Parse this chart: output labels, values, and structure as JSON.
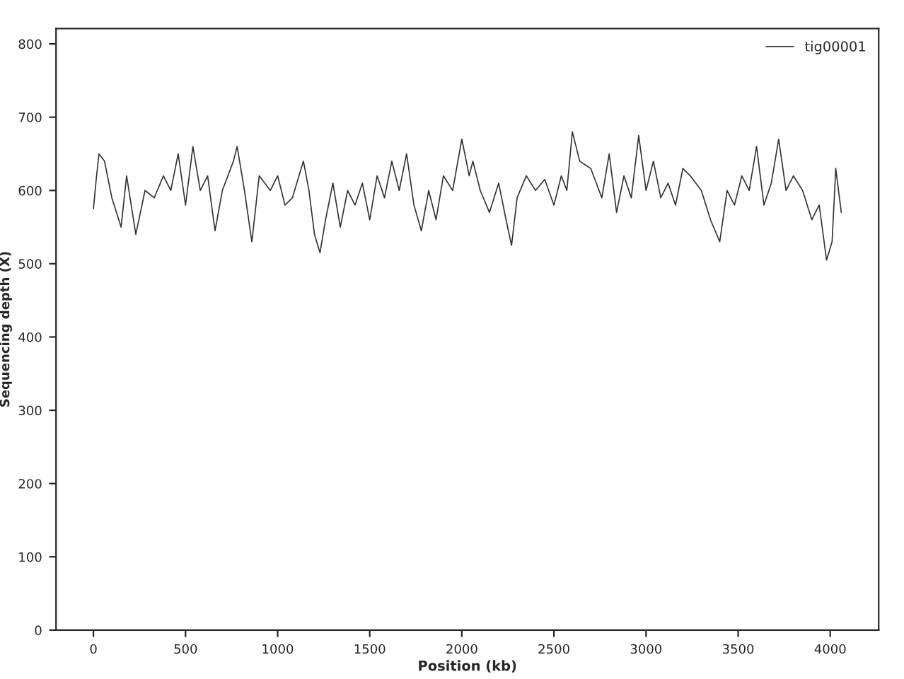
{
  "chart_data": {
    "type": "line",
    "xlabel": "Position (kb)",
    "ylabel": "Sequencing depth (X)",
    "xlim": [
      -203,
      4263
    ],
    "ylim": [
      0,
      821
    ],
    "xticks": [
      0,
      500,
      1000,
      1500,
      2000,
      2500,
      3000,
      3500,
      4000
    ],
    "yticks": [
      0,
      100,
      200,
      300,
      400,
      500,
      600,
      700,
      800
    ],
    "grid": false,
    "legend": "top right",
    "line_style": "solid",
    "marker": "none",
    "series": [
      {
        "name": "tig00001",
        "color": "#333333",
        "x": [
          0,
          15,
          30,
          60,
          100,
          150,
          180,
          230,
          280,
          330,
          380,
          420,
          460,
          500,
          540,
          580,
          620,
          660,
          700,
          760,
          780,
          820,
          860,
          900,
          960,
          1000,
          1040,
          1080,
          1140,
          1170,
          1200,
          1230,
          1260,
          1300,
          1340,
          1380,
          1420,
          1460,
          1500,
          1540,
          1580,
          1620,
          1660,
          1700,
          1740,
          1780,
          1820,
          1860,
          1900,
          1950,
          2000,
          2040,
          2060,
          2100,
          2150,
          2200,
          2240,
          2270,
          2300,
          2350,
          2400,
          2450,
          2500,
          2540,
          2570,
          2600,
          2640,
          2700,
          2760,
          2800,
          2840,
          2880,
          2920,
          2960,
          3000,
          3040,
          3080,
          3120,
          3160,
          3200,
          3240,
          3300,
          3350,
          3400,
          3440,
          3480,
          3520,
          3560,
          3600,
          3640,
          3680,
          3720,
          3760,
          3800,
          3850,
          3900,
          3940,
          3980,
          4010,
          4030,
          4060
        ],
        "values": [
          575,
          615,
          650,
          640,
          590,
          550,
          620,
          540,
          600,
          590,
          620,
          600,
          650,
          580,
          660,
          600,
          620,
          545,
          600,
          640,
          660,
          600,
          530,
          620,
          600,
          620,
          580,
          590,
          640,
          600,
          540,
          515,
          560,
          610,
          550,
          600,
          580,
          610,
          560,
          620,
          590,
          640,
          600,
          650,
          580,
          545,
          600,
          560,
          620,
          600,
          670,
          620,
          640,
          600,
          570,
          610,
          560,
          525,
          590,
          620,
          600,
          615,
          580,
          620,
          600,
          680,
          640,
          630,
          590,
          650,
          570,
          620,
          590,
          675,
          600,
          640,
          590,
          610,
          580,
          630,
          620,
          600,
          560,
          530,
          600,
          580,
          620,
          600,
          660,
          580,
          610,
          670,
          600,
          620,
          600,
          560,
          580,
          505,
          530,
          630,
          570
        ]
      }
    ]
  }
}
